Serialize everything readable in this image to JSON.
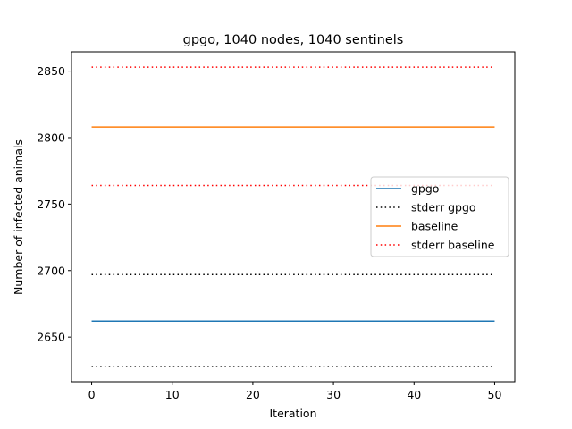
{
  "chart_data": {
    "type": "line",
    "title": "gpgo, 1040 nodes, 1040 sentinels",
    "xlabel": "Iteration",
    "ylabel": "Number of infected animals",
    "xlim": [
      -2.5,
      52.5
    ],
    "ylim": [
      2616.5,
      2864.5
    ],
    "xticks": [
      0,
      10,
      20,
      30,
      40,
      50
    ],
    "yticks": [
      2650,
      2700,
      2750,
      2800,
      2850
    ],
    "x": [
      0,
      50
    ],
    "grid": false,
    "legend_position": "center-right",
    "series": [
      {
        "name": "gpgo",
        "values": [
          2662,
          2662
        ],
        "color": "#1f77b4",
        "style": "solid"
      },
      {
        "name": "stderr gpgo",
        "values": [
          2628,
          2628
        ],
        "color": "#000000",
        "style": "dotted"
      },
      {
        "name": "stderr gpgo",
        "values": [
          2697,
          2697
        ],
        "color": "#000000",
        "style": "dotted",
        "legend": false
      },
      {
        "name": "baseline",
        "values": [
          2808,
          2808
        ],
        "color": "#ff7f0e",
        "style": "solid"
      },
      {
        "name": "stderr baseline",
        "values": [
          2764,
          2764
        ],
        "color": "#ff0000",
        "style": "dotted"
      },
      {
        "name": "stderr baseline",
        "values": [
          2853,
          2853
        ],
        "color": "#ff0000",
        "style": "dotted",
        "legend": false
      }
    ]
  }
}
